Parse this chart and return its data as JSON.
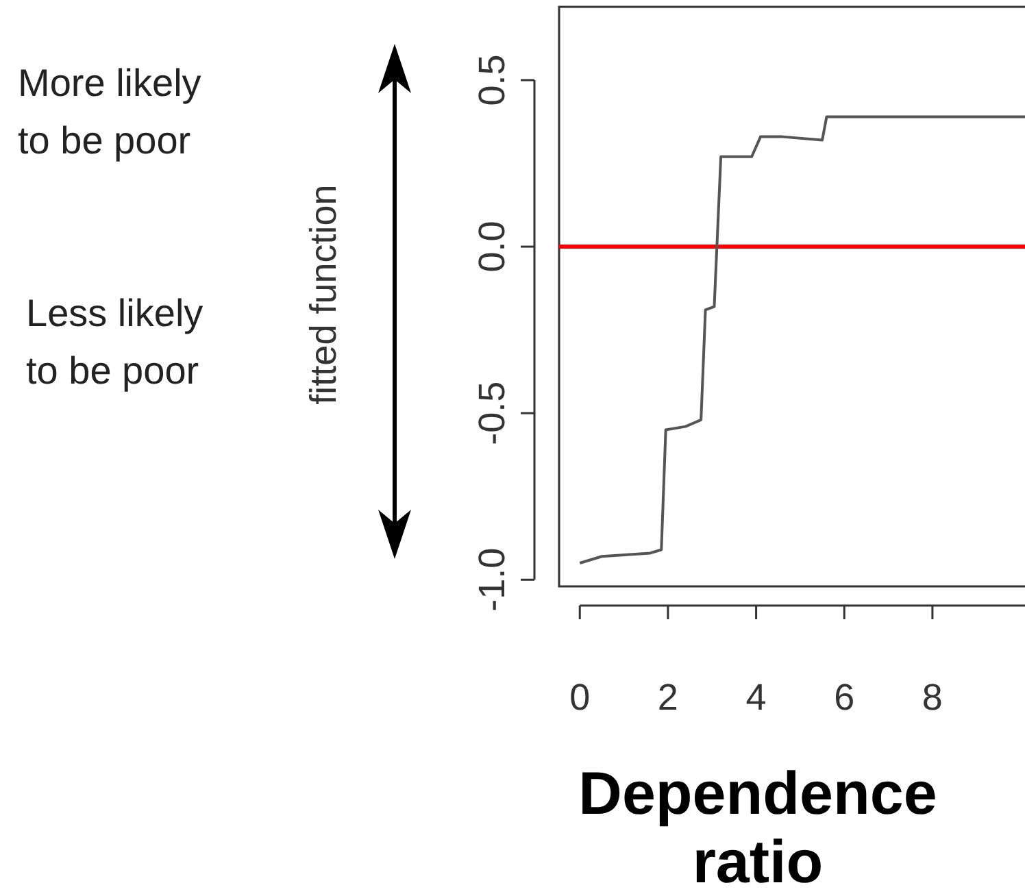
{
  "chart_data": {
    "type": "line",
    "xlabel": "Dependence ratio",
    "ylabel": "fitted function",
    "annotations": [
      "More likely to be poor",
      "Less likely to be poor"
    ],
    "xlim": [
      -0.47,
      10.1
    ],
    "xticks": [
      0,
      2,
      4,
      6,
      8
    ],
    "ylim": [
      -1.02,
      0.72
    ],
    "yticks": [
      {
        "value": -1,
        "label": "-1.0"
      },
      -0.5,
      {
        "value": 0,
        "label": "0.0"
      },
      0.5
    ],
    "ref_lines": [
      {
        "axis": "y",
        "value": 0,
        "color": "#ff0000"
      }
    ],
    "series": [
      {
        "color": "#555555",
        "x": [
          0,
          0.5,
          1.6,
          1.85,
          1.95,
          2.4,
          2.75,
          2.85,
          3.05,
          3.2,
          3.9,
          4.1,
          4.6,
          5.5,
          5.6,
          10.1
        ],
        "values": [
          -0.95,
          -0.93,
          -0.92,
          -0.91,
          -0.55,
          -0.54,
          -0.52,
          -0.19,
          -0.18,
          0.27,
          0.27,
          0.33,
          0.33,
          0.32,
          0.39,
          0.39
        ]
      }
    ]
  }
}
